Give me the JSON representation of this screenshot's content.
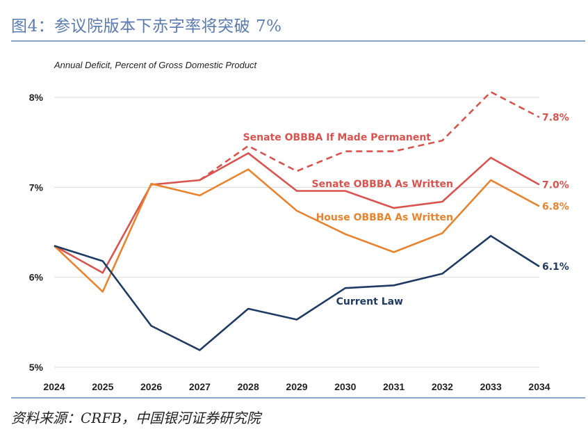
{
  "figure_title": "图4：参议院版本下赤字率将突破 7%",
  "source_note": "资料来源：CRFB，中国银河证券研究院",
  "chart_data": {
    "type": "line",
    "subtitle": "Annual Deficit, Percent of Gross Domestic Product",
    "x": [
      2024,
      2025,
      2026,
      2027,
      2028,
      2029,
      2030,
      2031,
      2032,
      2033,
      2034
    ],
    "x_tick_labels": [
      "2024",
      "2025",
      "2026",
      "2027",
      "2028",
      "2029",
      "2030",
      "2031",
      "2032",
      "2033",
      "2034"
    ],
    "ylim": [
      5,
      8
    ],
    "y_ticks": [
      5,
      6,
      7,
      8
    ],
    "y_tick_labels": [
      "5%",
      "6%",
      "7%",
      "8%"
    ],
    "grid": "horizontal",
    "series": [
      {
        "name": "Senate OBBBA If Made Permanent",
        "color": "#d9534f",
        "dashed": true,
        "end_label": "7.8%",
        "values": [
          null,
          null,
          null,
          7.08,
          7.46,
          7.18,
          7.4,
          7.4,
          7.52,
          8.06,
          7.78
        ]
      },
      {
        "name": "Senate OBBBA As Written",
        "color": "#d9534f",
        "dashed": false,
        "end_label": "7.0%",
        "values": [
          6.35,
          6.05,
          7.03,
          7.08,
          7.38,
          6.96,
          6.96,
          6.77,
          6.84,
          7.33,
          7.03
        ]
      },
      {
        "name": "House OBBBA As Written",
        "color": "#e8832e",
        "dashed": false,
        "end_label": "6.8%",
        "values": [
          6.35,
          5.84,
          7.04,
          6.91,
          7.2,
          6.74,
          6.48,
          6.28,
          6.49,
          7.08,
          6.79
        ]
      },
      {
        "name": "Current Law",
        "color": "#1f3b63",
        "dashed": false,
        "end_label": "6.1%",
        "values": [
          6.35,
          6.18,
          5.46,
          5.19,
          5.65,
          5.53,
          5.88,
          5.91,
          6.04,
          6.46,
          6.12
        ]
      }
    ]
  }
}
